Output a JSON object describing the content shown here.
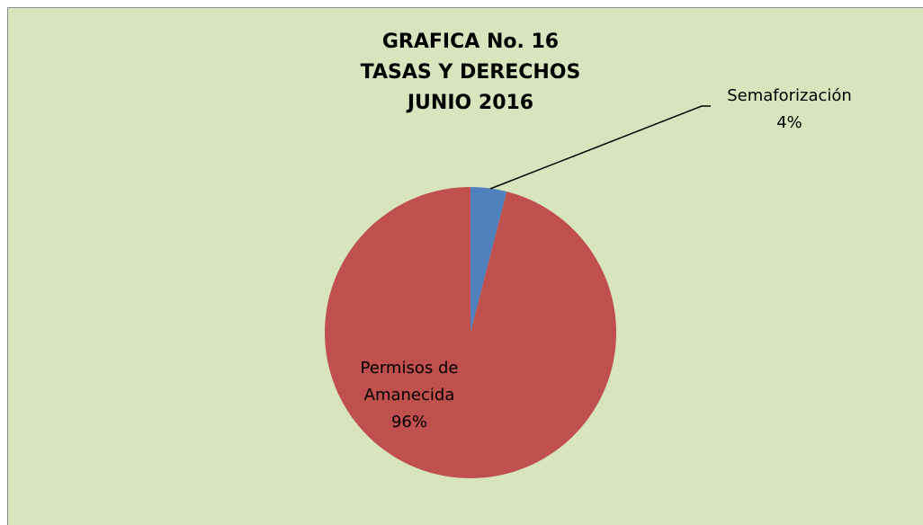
{
  "chart_data": {
    "type": "pie",
    "title": [
      "GRAFICA No. 16",
      "TASAS Y DERECHOS",
      "JUNIO 2016"
    ],
    "categories": [
      "Semaforización",
      "Permisos de Amanecida"
    ],
    "values": [
      4,
      96
    ],
    "value_labels": [
      "4%",
      "96%"
    ],
    "colors": [
      "#4f81bd",
      "#c0504d"
    ]
  }
}
